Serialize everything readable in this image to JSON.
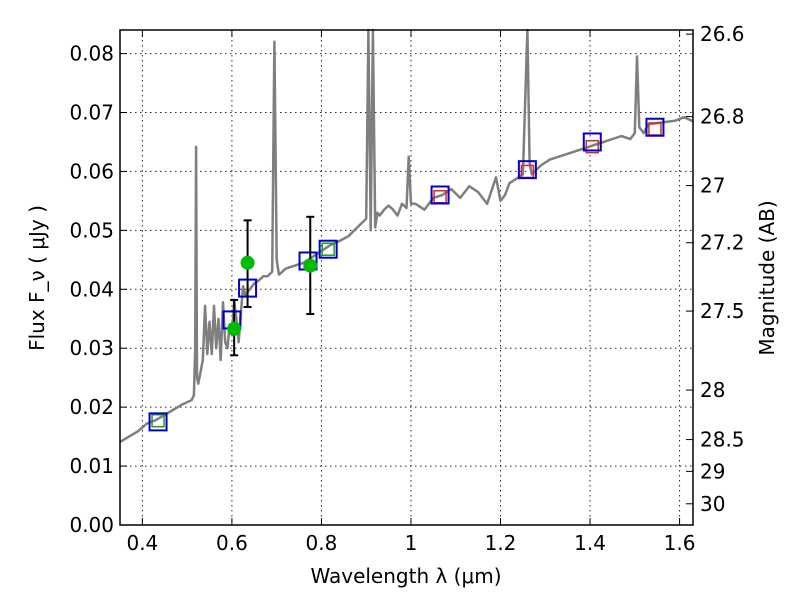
{
  "chart_data": {
    "type": "line",
    "title": "",
    "xlabel": "Wavelength  λ (μm)",
    "ylabel": "Flux  F_ν  ( μJy )",
    "ylabel_right": "Magnitude (AB)",
    "xlim": [
      0.35,
      1.63
    ],
    "ylim": [
      0.0,
      0.084
    ],
    "grid": true,
    "xticks": [
      0.4,
      0.6,
      0.8,
      1.0,
      1.2,
      1.4,
      1.6
    ],
    "xtick_labels": [
      "0.4",
      "0.6",
      "0.8",
      "1",
      "1.2",
      "1.4",
      "1.6"
    ],
    "yticks": [
      0.0,
      0.01,
      0.02,
      0.03,
      0.04,
      0.05,
      0.06,
      0.07,
      0.08
    ],
    "ytick_labels": [
      "0.00",
      "0.01",
      "0.02",
      "0.03",
      "0.04",
      "0.05",
      "0.06",
      "0.07",
      "0.08"
    ],
    "right_ticks": [
      {
        "label": "26.6",
        "flux": 0.0833
      },
      {
        "label": "26.8",
        "flux": 0.0693
      },
      {
        "label": "27",
        "flux": 0.0576
      },
      {
        "label": "27.2",
        "flux": 0.0479
      },
      {
        "label": "27.5",
        "flux": 0.0363
      },
      {
        "label": "28",
        "flux": 0.0229
      },
      {
        "label": "28.5",
        "flux": 0.0145
      },
      {
        "label": "29",
        "flux": 0.0091
      },
      {
        "label": "30",
        "flux": 0.0036
      }
    ],
    "series": [
      {
        "name": "model_spectrum",
        "style": "line",
        "color": "#7f7f7f",
        "x": [
          0.35,
          0.37,
          0.39,
          0.41,
          0.43,
          0.45,
          0.47,
          0.49,
          0.51,
          0.515,
          0.518,
          0.52,
          0.522,
          0.525,
          0.53,
          0.535,
          0.54,
          0.545,
          0.55,
          0.555,
          0.56,
          0.565,
          0.57,
          0.575,
          0.58,
          0.585,
          0.59,
          0.595,
          0.6,
          0.605,
          0.61,
          0.615,
          0.62,
          0.625,
          0.63,
          0.64,
          0.65,
          0.66,
          0.67,
          0.68,
          0.69,
          0.695,
          0.7,
          0.705,
          0.71,
          0.72,
          0.74,
          0.76,
          0.78,
          0.8,
          0.82,
          0.84,
          0.86,
          0.88,
          0.9,
          0.905,
          0.91,
          0.915,
          0.92,
          0.925,
          0.93,
          0.94,
          0.95,
          0.96,
          0.97,
          0.98,
          0.99,
          0.995,
          1.0,
          1.01,
          1.03,
          1.05,
          1.07,
          1.09,
          1.11,
          1.13,
          1.15,
          1.17,
          1.19,
          1.2,
          1.21,
          1.22,
          1.25,
          1.26,
          1.265,
          1.27,
          1.29,
          1.31,
          1.33,
          1.35,
          1.37,
          1.39,
          1.41,
          1.43,
          1.45,
          1.47,
          1.49,
          1.5,
          1.505,
          1.51,
          1.52,
          1.53,
          1.55,
          1.57,
          1.59,
          1.61,
          1.63
        ],
        "y": [
          0.0141,
          0.015,
          0.0159,
          0.0172,
          0.0178,
          0.0187,
          0.0196,
          0.0205,
          0.0212,
          0.022,
          0.03,
          0.0642,
          0.025,
          0.024,
          0.026,
          0.028,
          0.0372,
          0.029,
          0.0345,
          0.029,
          0.0372,
          0.03,
          0.035,
          0.028,
          0.0378,
          0.031,
          0.03,
          0.034,
          0.0322,
          0.038,
          0.035,
          0.031,
          0.036,
          0.0405,
          0.039,
          0.04,
          0.041,
          0.0415,
          0.0422,
          0.0422,
          0.043,
          0.082,
          0.045,
          0.0425,
          0.0428,
          0.0435,
          0.044,
          0.0445,
          0.0455,
          0.0465,
          0.0475,
          0.0482,
          0.049,
          0.0505,
          0.052,
          0.084,
          0.05,
          0.084,
          0.0505,
          0.053,
          0.0525,
          0.0535,
          0.0542,
          0.0535,
          0.0525,
          0.0545,
          0.0538,
          0.0625,
          0.0545,
          0.0545,
          0.0535,
          0.0555,
          0.056,
          0.057,
          0.0555,
          0.0575,
          0.0565,
          0.0545,
          0.059,
          0.055,
          0.056,
          0.058,
          0.0595,
          0.084,
          0.0615,
          0.0595,
          0.061,
          0.062,
          0.0625,
          0.063,
          0.0635,
          0.064,
          0.0645,
          0.065,
          0.0655,
          0.066,
          0.0655,
          0.0665,
          0.0795,
          0.0675,
          0.0665,
          0.068,
          0.0682,
          0.0684,
          0.0686,
          0.0692,
          0.0685
        ]
      },
      {
        "name": "model_photometry",
        "style": "small-squares",
        "points": [
          {
            "x": 0.435,
            "y": 0.0177,
            "color": "#1a9e1a"
          },
          {
            "x": 0.815,
            "y": 0.0468,
            "color": "#1a9e1a"
          },
          {
            "x": 1.065,
            "y": 0.0557,
            "color": "#d62728"
          },
          {
            "x": 1.26,
            "y": 0.06,
            "color": "#d62728"
          },
          {
            "x": 1.405,
            "y": 0.0642,
            "color": "#d62728"
          },
          {
            "x": 1.545,
            "y": 0.0672,
            "color": "#d62728"
          }
        ]
      },
      {
        "name": "observed_photometry",
        "style": "open-squares",
        "color": "#0000cc",
        "x": [
          0.435,
          0.6,
          0.635,
          0.77,
          0.815,
          1.065,
          1.26,
          1.405,
          1.545
        ],
        "y": [
          0.0175,
          0.0348,
          0.0402,
          0.0448,
          0.0468,
          0.056,
          0.0603,
          0.065,
          0.0675
        ]
      },
      {
        "name": "measured_flux",
        "style": "circles-with-errorbars",
        "color": "#00bb00",
        "x": [
          0.605,
          0.635,
          0.775
        ],
        "y": [
          0.0333,
          0.0445,
          0.044
        ],
        "yerr_low": [
          0.0288,
          0.037,
          0.0358
        ],
        "yerr_high": [
          0.0382,
          0.0517,
          0.0523
        ]
      }
    ]
  }
}
